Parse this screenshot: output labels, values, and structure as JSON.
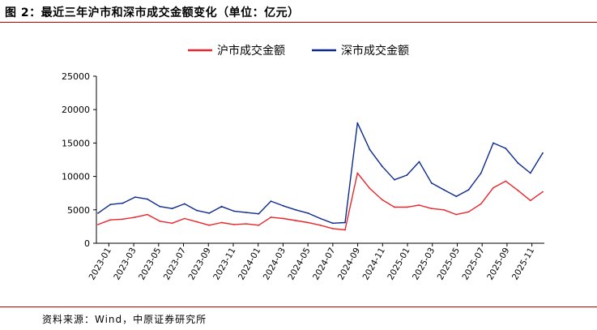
{
  "header": {
    "title": "图 2：最近三年沪市和深市成交金额变化（单位：亿元）"
  },
  "footer": {
    "source": "资料来源：Wind，中原证券研究所"
  },
  "colors": {
    "accent_rule": "#c00000",
    "sh_series": "#e8262b",
    "sz_series": "#0c2a8c"
  },
  "chart_data": {
    "type": "line",
    "title": "",
    "xlabel": "",
    "ylabel": "",
    "ylim": [
      0,
      25000
    ],
    "yticks": [
      0,
      5000,
      10000,
      15000,
      20000,
      25000
    ],
    "xticks": [
      "2023-01",
      "2023-03",
      "2023-05",
      "2023-07",
      "2023-09",
      "2023-11",
      "2024-01",
      "2024-03",
      "2024-05",
      "2024-07",
      "2024-09",
      "2024-11",
      "2025-01",
      "2025-03",
      "2025-05",
      "2025-07",
      "2025-09",
      "2025-11"
    ],
    "grid": false,
    "legend_position": "top-center",
    "x": [
      "2023-01",
      "2023-02",
      "2023-03",
      "2023-04",
      "2023-05",
      "2023-06",
      "2023-07",
      "2023-08",
      "2023-09",
      "2023-10",
      "2023-11",
      "2023-12",
      "2024-01",
      "2024-02",
      "2024-03",
      "2024-04",
      "2024-05",
      "2024-06",
      "2024-07",
      "2024-08",
      "2024-09-early",
      "2024-09-late",
      "2024-10",
      "2024-11",
      "2024-12",
      "2025-01",
      "2025-02",
      "2025-03",
      "2025-04",
      "2025-05",
      "2025-06",
      "2025-07",
      "2025-08",
      "2025-09",
      "2025-10",
      "2025-11",
      "2025-12"
    ],
    "series": [
      {
        "name": "沪市成交金额",
        "color": "#e8262b",
        "values": [
          2800,
          3500,
          3600,
          3900,
          4300,
          3300,
          3000,
          3700,
          3200,
          2700,
          3100,
          2800,
          2900,
          2700,
          3900,
          3700,
          3400,
          3100,
          2700,
          2200,
          2000,
          10500,
          8200,
          6500,
          5400,
          5400,
          5700,
          5200,
          5000,
          4300,
          4700,
          5900,
          8300,
          9300,
          7900,
          6400,
          7700
        ]
      },
      {
        "name": "深市成交金额",
        "color": "#0c2a8c",
        "values": [
          4500,
          5800,
          6000,
          6900,
          6600,
          5500,
          5200,
          5900,
          4900,
          4500,
          5500,
          4800,
          4600,
          4400,
          6300,
          5600,
          5000,
          4500,
          3700,
          3000,
          3100,
          18000,
          14000,
          11500,
          9500,
          10200,
          12200,
          9000,
          8000,
          7000,
          8000,
          10500,
          15000,
          14200,
          12000,
          10500,
          13500
        ]
      }
    ]
  }
}
